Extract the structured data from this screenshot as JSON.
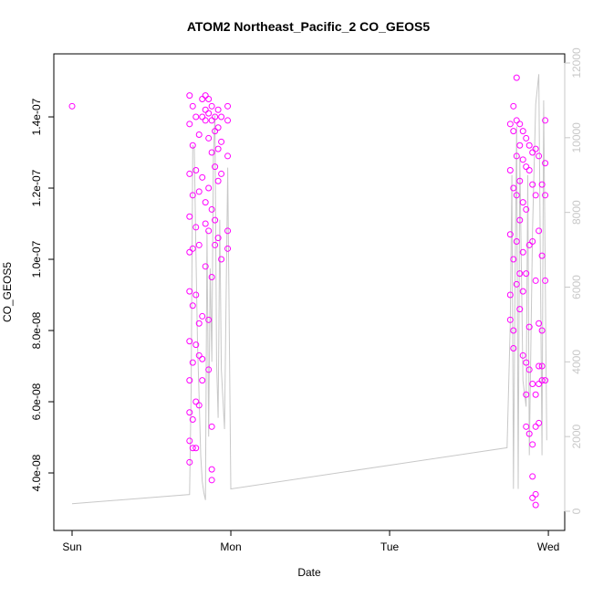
{
  "chart_data": {
    "type": "scatter",
    "title": "ATOM2 Northeast_Pacific_2 CO_GEOS5",
    "x_label": "Date",
    "y_label": "CO_GEOS5",
    "xlim": [
      -0.115,
      3.103
    ],
    "xticks": [
      {
        "value": 0,
        "label": "Sun"
      },
      {
        "value": 1,
        "label": "Mon"
      },
      {
        "value": 2,
        "label": "Tue"
      },
      {
        "value": 3,
        "label": "Wed"
      }
    ],
    "ylim": [
      2.385e-08,
      1.577e-07
    ],
    "yticks": [
      {
        "value": 4e-08,
        "label": "4.0e-08"
      },
      {
        "value": 6e-08,
        "label": "6.0e-08"
      },
      {
        "value": 8e-08,
        "label": "8.0e-08"
      },
      {
        "value": 1e-07,
        "label": "1.0e-07"
      },
      {
        "value": 1.2e-07,
        "label": "1.2e-07"
      },
      {
        "value": 1.4e-07,
        "label": "1.4e-07"
      }
    ],
    "y2lim": [
      -513,
      12244
    ],
    "y2ticks": [
      0,
      2000,
      4000,
      6000,
      8000,
      10000,
      12000
    ],
    "y2_color": "#c8c8c8",
    "series": [
      {
        "style": "points",
        "color": "#ff00ff",
        "x": [
          0,
          0.74,
          0.74,
          0.74,
          0.74,
          0.74,
          0.74,
          0.74,
          0.74,
          0.74,
          0.74,
          0.74,
          0.76,
          0.76,
          0.76,
          0.76,
          0.76,
          0.76,
          0.76,
          0.76,
          0.78,
          0.78,
          0.78,
          0.78,
          0.78,
          0.78,
          0.78,
          0.8,
          0.8,
          0.8,
          0.8,
          0.8,
          0.8,
          0.82,
          0.82,
          0.82,
          0.82,
          0.82,
          0.82,
          0.84,
          0.84,
          0.84,
          0.84,
          0.84,
          0.84,
          0.86,
          0.86,
          0.86,
          0.86,
          0.86,
          0.86,
          0.86,
          0.88,
          0.88,
          0.88,
          0.88,
          0.88,
          0.88,
          0.88,
          0.88,
          0.9,
          0.9,
          0.9,
          0.9,
          0.9,
          0.92,
          0.92,
          0.92,
          0.92,
          0.92,
          0.94,
          0.94,
          0.94,
          0.94,
          0.98,
          0.98,
          0.98,
          0.98,
          0.98,
          2.76,
          2.76,
          2.76,
          2.76,
          2.76,
          2.78,
          2.78,
          2.78,
          2.78,
          2.78,
          2.78,
          2.8,
          2.8,
          2.8,
          2.8,
          2.8,
          2.8,
          2.82,
          2.82,
          2.82,
          2.82,
          2.82,
          2.82,
          2.84,
          2.84,
          2.84,
          2.84,
          2.84,
          2.84,
          2.86,
          2.86,
          2.86,
          2.86,
          2.86,
          2.86,
          2.86,
          2.88,
          2.88,
          2.88,
          2.88,
          2.88,
          2.88,
          2.9,
          2.9,
          2.9,
          2.9,
          2.9,
          2.9,
          2.9,
          2.92,
          2.92,
          2.92,
          2.92,
          2.92,
          2.92,
          2.92,
          2.94,
          2.94,
          2.94,
          2.94,
          2.94,
          2.94,
          2.96,
          2.96,
          2.96,
          2.96,
          2.96,
          2.98,
          2.98,
          2.98,
          2.98,
          2.98
        ],
        "y": [
          1.43e-07,
          1.46e-07,
          1.38e-07,
          1.24e-07,
          1.12e-07,
          1.02e-07,
          9.1e-08,
          7.7e-08,
          6.6e-08,
          5.7e-08,
          4.9e-08,
          4.3e-08,
          1.43e-07,
          1.32e-07,
          1.18e-07,
          1.03e-07,
          8.7e-08,
          7.1e-08,
          5.5e-08,
          4.7e-08,
          1.4e-07,
          1.25e-07,
          1.09e-07,
          9e-08,
          7.6e-08,
          6e-08,
          4.7e-08,
          1.35e-07,
          1.19e-07,
          1.04e-07,
          8.2e-08,
          7.3e-08,
          5.9e-08,
          1.45e-07,
          1.4e-07,
          1.23e-07,
          8.4e-08,
          7.2e-08,
          6.6e-08,
          1.46e-07,
          1.42e-07,
          1.39e-07,
          1.16e-07,
          1.1e-07,
          9.8e-08,
          1.45e-07,
          1.41e-07,
          1.34e-07,
          1.2e-07,
          1.08e-07,
          8.3e-08,
          6.9e-08,
          1.43e-07,
          1.39e-07,
          1.3e-07,
          1.14e-07,
          9.5e-08,
          5.3e-08,
          4.1e-08,
          3.8e-08,
          1.4e-07,
          1.36e-07,
          1.26e-07,
          1.11e-07,
          1.04e-07,
          1.42e-07,
          1.37e-07,
          1.31e-07,
          1.22e-07,
          1.06e-07,
          1.4e-07,
          1.33e-07,
          1.24e-07,
          1e-07,
          1.43e-07,
          1.39e-07,
          1.29e-07,
          1.08e-07,
          1.03e-07,
          1.38e-07,
          1.25e-07,
          1.07e-07,
          9e-08,
          8.3e-08,
          1.43e-07,
          1.36e-07,
          1.2e-07,
          1e-07,
          8e-08,
          7.5e-08,
          1.51e-07,
          1.39e-07,
          1.29e-07,
          1.18e-07,
          1.05e-07,
          9.3e-08,
          1.38e-07,
          1.32e-07,
          1.22e-07,
          1.11e-07,
          9.6e-08,
          8.6e-08,
          1.36e-07,
          1.28e-07,
          1.16e-07,
          1.02e-07,
          9.1e-08,
          7.3e-08,
          1.34e-07,
          1.26e-07,
          1.14e-07,
          9.6e-08,
          7.1e-08,
          6.2e-08,
          5.3e-08,
          1.32e-07,
          1.25e-07,
          1.04e-07,
          8.1e-08,
          6.9e-08,
          5.1e-08,
          1.3e-07,
          1.21e-07,
          1.05e-07,
          6.5e-08,
          4.8e-08,
          3.9e-08,
          3.3e-08,
          1.31e-07,
          1.18e-07,
          9.4e-08,
          6.2e-08,
          5.3e-08,
          3.4e-08,
          3.1e-08,
          1.29e-07,
          1.08e-07,
          8.2e-08,
          7e-08,
          6.5e-08,
          5.4e-08,
          1.21e-07,
          1.01e-07,
          8e-08,
          7e-08,
          6.6e-08,
          1.39e-07,
          1.27e-07,
          1.18e-07,
          9.4e-08,
          6.6e-08
        ]
      },
      {
        "style": "line",
        "axis": "y2",
        "color": "#c8c8c8",
        "x": [
          0,
          0.74,
          0.75,
          0.76,
          0.77,
          0.78,
          0.79,
          0.8,
          0.81,
          0.82,
          0.83,
          0.84,
          0.85,
          0.86,
          0.87,
          0.88,
          0.89,
          0.9,
          0.91,
          0.92,
          0.93,
          0.94,
          0.96,
          0.98,
          1.0,
          2.74,
          2.76,
          2.77,
          2.78,
          2.79,
          2.8,
          2.81,
          2.82,
          2.84,
          2.86,
          2.87,
          2.88,
          2.9,
          2.92,
          2.94,
          2.96,
          2.97,
          2.99
        ],
        "y": [
          200,
          450,
          3200,
          9800,
          9700,
          7000,
          4500,
          3100,
          1500,
          800,
          500,
          300,
          7500,
          2000,
          6500,
          4000,
          9500,
          10600,
          4000,
          2500,
          7800,
          3800,
          2200,
          9200,
          600,
          1700,
          5000,
          9000,
          600,
          6000,
          10300,
          600,
          9500,
          3500,
          2800,
          9000,
          1500,
          7500,
          10900,
          11700,
          1500,
          11000,
          1900
        ]
      }
    ]
  }
}
